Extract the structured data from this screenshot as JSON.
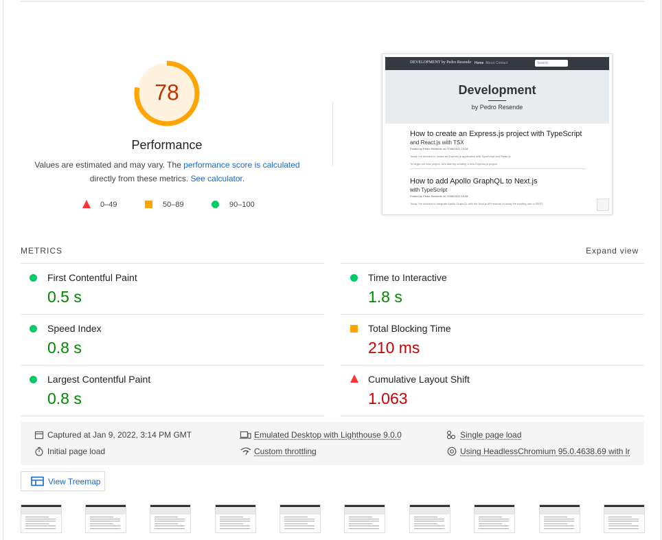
{
  "score": 78,
  "category": "Performance",
  "description": [
    "Values are estimated and may vary. The",
    "performance score is calculated",
    "directly from these metrics.",
    "See calculator."
  ],
  "legend": [
    "0–49",
    "50–89",
    "90–100"
  ],
  "screenshot": {
    "site_title": "DEVELOPMENT by Pedro Resende",
    "nav": [
      "Home",
      "About",
      "Contact"
    ],
    "search": "Search",
    "hero_title": "Development",
    "hero_subtitle": "by Pedro Resende",
    "posts": [
      {
        "title": "How to create an Express.js project with TypeScript",
        "subtitle": "and React.js with TSX",
        "meta": "Posted by Pedro Resende on 07/08/2021 13:28",
        "excerpt": [
          "Today I've decided to create an Express.js application with TypeScript and React.js",
          "To begin our new project, let's start by creating a new Express.js project"
        ]
      },
      {
        "title": "How to add Apollo GraphQL to Next.js",
        "subtitle": "with TypeScript",
        "meta": "Posted by Pedro Resende on 22/06/2021 13:28",
        "excerpt": [
          "Today I've decided to integrate Apollo GraphQL with the Next.js API instead of using the existing one to REST"
        ]
      }
    ]
  },
  "metrics_header": "METRICS",
  "expand": "Expand view",
  "metrics": [
    {
      "name": "First Contentful Paint",
      "value": "0.5 s"
    },
    {
      "name": "Time to Interactive",
      "value": "1.8 s"
    },
    {
      "name": "Speed Index",
      "value": "0.8 s"
    },
    {
      "name": "Total Blocking Time",
      "value": "210 ms"
    },
    {
      "name": "Largest Contentful Paint",
      "value": "0.8 s"
    },
    {
      "name": "Cumulative Layout Shift",
      "value": "1.063"
    }
  ],
  "runtime": [
    "Captured at Jan 9, 2022, 3:14 PM GMT",
    "Emulated Desktop with Lighthouse 9.0.0",
    "Single page load",
    "Initial page load",
    "Custom throttling",
    "Using HeadlessChromium 95.0.4638.69 with lr"
  ],
  "treemap_button": "View Treemap"
}
